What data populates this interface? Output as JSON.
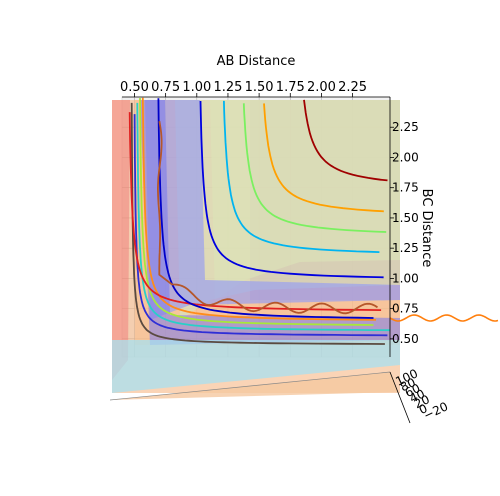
{
  "chart_data": {
    "type": "surface3d-contour",
    "title": "",
    "xlabel": "AB Distance",
    "ylabel": "BC Distance",
    "zlabel": "",
    "x_ticks": [
      "0.50",
      "0.75",
      "1.00",
      "1.25",
      "1.50",
      "1.75",
      "2.00",
      "2.25"
    ],
    "y_ticks": [
      "2.25",
      "2.00",
      "1.75",
      "1.50",
      "1.25",
      "1.00",
      "0.75",
      "0.50"
    ],
    "z_ticks": [
      "100",
      "80",
      "60",
      "40",
      "20",
      "0",
      "−20"
    ],
    "xlim": [
      0.4,
      2.55
    ],
    "ylim": [
      0.35,
      2.5
    ],
    "colormap": "jet",
    "contour_levels": [
      {
        "rank": 1,
        "color": "#5a4a40",
        "asymptote_ab": 0.47,
        "asymptote_bc": 0.45
      },
      {
        "rank": 2,
        "color": "#2f2fd6",
        "asymptote_ab": 0.49,
        "asymptote_bc": 0.52
      },
      {
        "rank": 3,
        "color": "#28d0c8",
        "asymptote_ab": 0.51,
        "asymptote_bc": 0.56
      },
      {
        "rank": 4,
        "color": "#a8e838",
        "asymptote_ab": 0.53,
        "asymptote_bc": 0.6
      },
      {
        "rank": 5,
        "color": "#ff8c1a",
        "asymptote_ab": 0.55,
        "asymptote_bc": 0.64
      },
      {
        "rank": 6,
        "color": "#e02020",
        "asymptote_ab": 0.44,
        "asymptote_bc": 0.72
      },
      {
        "rank": 7,
        "color": "#0000c8",
        "asymptote_ab": 0.67,
        "asymptote_bc": 0.65
      },
      {
        "rank": 8,
        "color": "#0000e0",
        "asymptote_ab": 1.0,
        "asymptote_bc": 0.98
      },
      {
        "rank": 9,
        "color": "#00b4f0",
        "asymptote_ab": 1.18,
        "asymptote_bc": 1.18
      },
      {
        "rank": 10,
        "color": "#7af060",
        "asymptote_ab": 1.33,
        "asymptote_bc": 1.34
      },
      {
        "rank": 11,
        "color": "#ffa000",
        "asymptote_ab": 1.48,
        "asymptote_bc": 1.5
      },
      {
        "rank": 12,
        "color": "#a00000",
        "asymptote_ab": 1.78,
        "asymptote_bc": 1.73
      }
    ],
    "trajectory": {
      "color": "#b5572a",
      "start_ab": 0.7,
      "start_bc": 2.3,
      "end_ab": 2.45,
      "mean_bc": 0.75
    },
    "projection": {
      "color": "#ff7f0e",
      "description_level_bc": 0.75
    },
    "grid": true,
    "legend": "none"
  }
}
